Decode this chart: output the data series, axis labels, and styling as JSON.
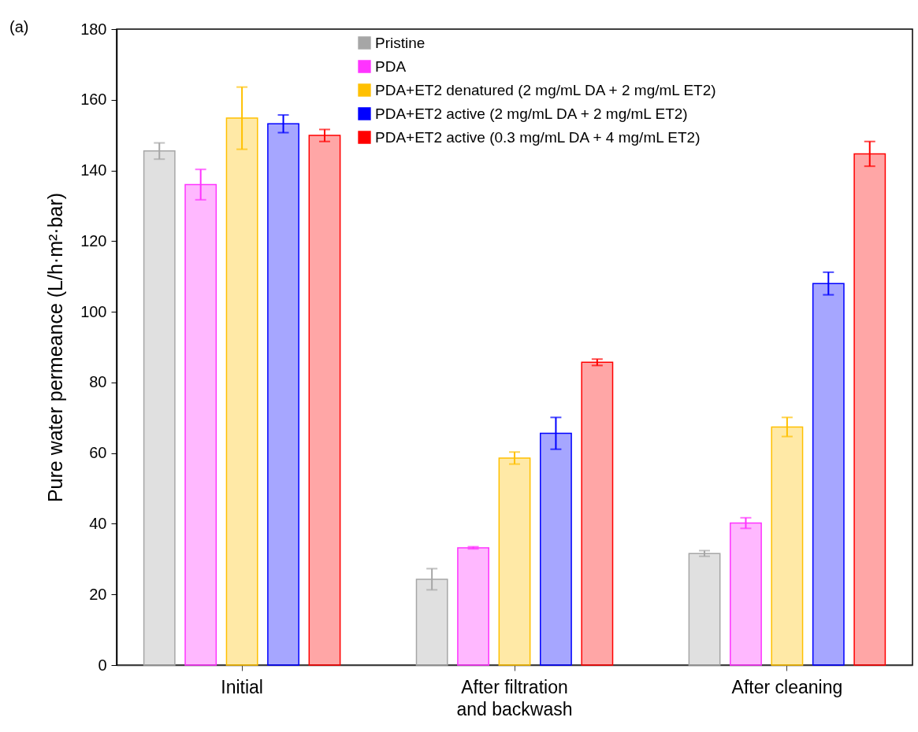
{
  "chart_data": {
    "type": "bar",
    "ylabel": "Pure water permeance (L/h·m²·bar)",
    "annotations": [
      "(a)"
    ],
    "categories": [
      "Initial",
      "After filtration and backwash",
      "After cleaning"
    ],
    "series": [
      {
        "name": "Pristine",
        "color": "#a6a6a6",
        "values": [
          145.5,
          24.3,
          31.6
        ],
        "errors": [
          2.3,
          3.0,
          0.8
        ]
      },
      {
        "name": "PDA",
        "color": "#ff33ff",
        "values": [
          136.0,
          33.2,
          40.2
        ],
        "errors": [
          4.3,
          0.3,
          1.5
        ]
      },
      {
        "name": "PDA+ET2 denatured (2 mg/mL DA + 2 mg/mL ET2)",
        "color": "#ffc000",
        "values": [
          154.8,
          58.6,
          67.4
        ],
        "errors": [
          8.8,
          1.7,
          2.7
        ]
      },
      {
        "name": "PDA+ET2 active (2 mg/mL DA + 2 mg/mL ET2)",
        "color": "#0000ff",
        "values": [
          153.2,
          65.6,
          108.0
        ],
        "errors": [
          2.5,
          4.5,
          3.2
        ]
      },
      {
        "name": "PDA+ET2 active (0.3 mg/mL DA + 4 mg/mL ET2)",
        "color": "#ff0000",
        "values": [
          149.9,
          85.7,
          144.7
        ],
        "errors": [
          1.7,
          0.9,
          3.5
        ]
      }
    ],
    "ylim": [
      0,
      180
    ],
    "yticks": [
      0,
      20,
      40,
      60,
      80,
      100,
      120,
      140,
      160,
      180
    ],
    "legend": "top"
  }
}
